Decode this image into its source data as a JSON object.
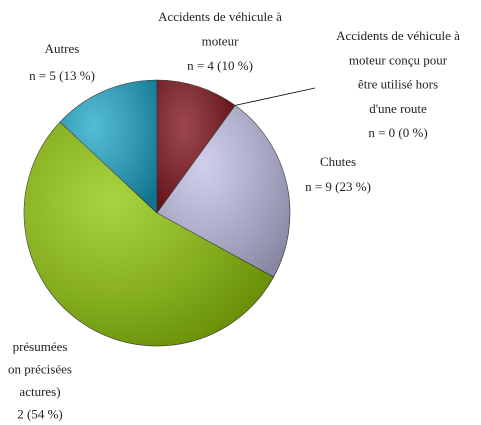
{
  "chart_data": {
    "type": "pie",
    "labels": [
      [
        "Accidents de véhicule à",
        "moteur"
      ],
      [
        "Accidents de véhicule à",
        "moteur conçu pour",
        "être utilisé hors",
        "d'une route"
      ],
      [
        "Chutes"
      ],
      [
        "présumées",
        "on précisées",
        "actures)"
      ],
      [
        "Autres"
      ]
    ],
    "values": [
      10,
      0,
      23,
      54,
      13
    ],
    "value_labels": [
      "n = 4 (10 %)",
      "n = 0 (0 %)",
      "n = 9 (23 %)",
      "2 (54 %)",
      "n = 5 (13 %)"
    ],
    "colors": [
      "#7a0a12",
      "#b4b4e6",
      "#bfbfe6",
      "#8cc400",
      "#1aa5c8"
    ]
  }
}
